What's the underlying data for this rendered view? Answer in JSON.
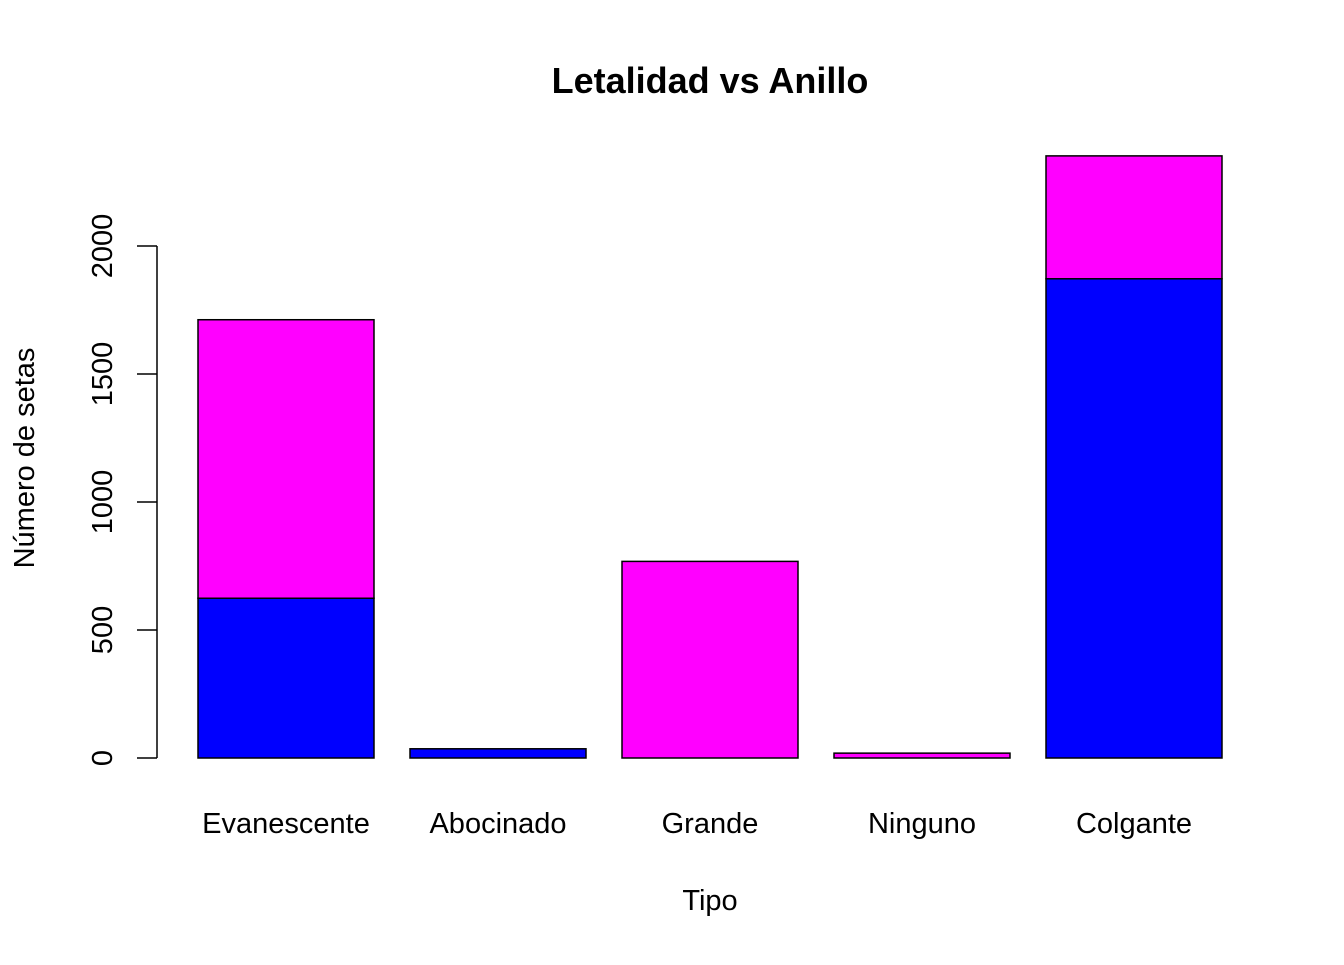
{
  "chart_data": {
    "type": "bar",
    "stacked": true,
    "title": "Letalidad vs Anillo",
    "xlabel": "Tipo",
    "ylabel": "Número de setas",
    "categories": [
      "Evanescente",
      "Abocinado",
      "Grande",
      "Ninguno",
      "Colgante"
    ],
    "series": [
      {
        "color": "#0000FF",
        "values": [
          624,
          36,
          0,
          0,
          1872
        ]
      },
      {
        "color": "#FF00FF",
        "values": [
          1088,
          0,
          768,
          19,
          480
        ]
      }
    ],
    "yticks": [
      0,
      500,
      1000,
      1500,
      2000
    ],
    "ylim": [
      0,
      2352
    ],
    "grid": false,
    "legend": "none"
  }
}
